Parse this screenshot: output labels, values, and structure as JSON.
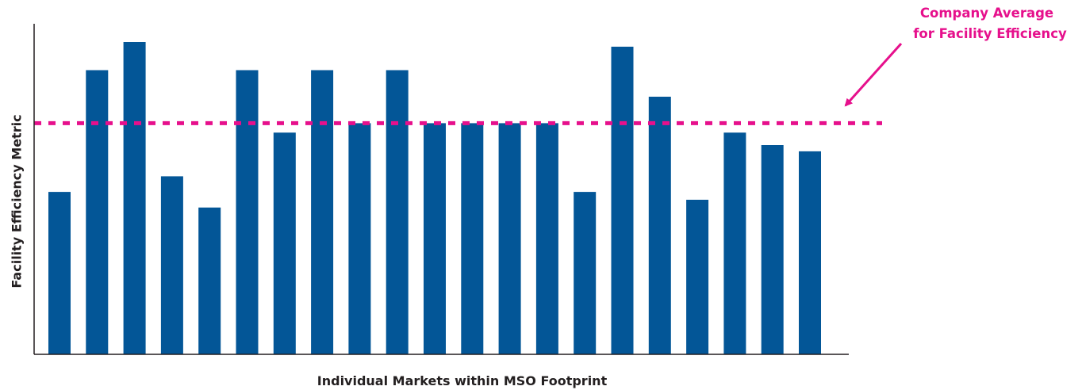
{
  "chart_data": {
    "type": "bar",
    "title": "",
    "xlabel": "Individual Markets within MSO Footprint",
    "ylabel": "Facility Efficiency Metric",
    "ylim": [
      0,
      100
    ],
    "grid": false,
    "values": [
      52,
      91,
      100,
      57,
      47,
      91,
      71,
      91,
      74,
      91,
      74,
      74,
      74,
      74,
      52,
      98.5,
      82.5,
      49.5,
      71,
      67,
      65
    ],
    "reference_line": {
      "value": 74,
      "style": "dashed",
      "color": "#e6108c",
      "label_lines": [
        "Company Average",
        "for Facility Efficiency"
      ]
    },
    "colors": {
      "bars": "#035697",
      "axis": "#231f20",
      "annotation": "#e6108c",
      "text": "#231f20"
    }
  }
}
